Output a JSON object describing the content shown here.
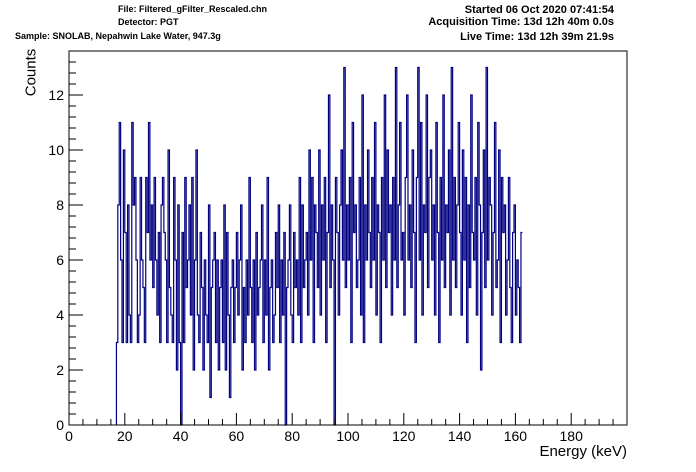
{
  "header": {
    "file": "File: Filtered_gFilter_Rescaled.chn",
    "detector": "Detector: PGT",
    "sample": "Sample: SNOLAB, Nepahwin Lake Water, 947.3g",
    "started": "Started 06 Oct 2020 07:41:54",
    "acquisition": "Acquisition Time: 13d 12h 40m 0.0s",
    "live": "Live Time: 13d 12h 39m 21.9s"
  },
  "colors": {
    "line": "#000080",
    "axis": "#000000"
  },
  "chart_data": {
    "type": "histogram",
    "xlabel": "Energy (keV)",
    "ylabel": "Counts",
    "xlim": [
      0,
      200
    ],
    "ylim": [
      0,
      13.6
    ],
    "xticks": [
      0,
      20,
      40,
      60,
      80,
      100,
      120,
      140,
      160,
      180
    ],
    "yticks": [
      0,
      2,
      4,
      6,
      8,
      10,
      12
    ],
    "bin_width": 0.5,
    "x_start": 17,
    "counts": [
      3,
      8,
      11,
      6,
      3,
      10,
      7,
      3,
      8,
      4,
      3,
      11,
      8,
      9,
      6,
      3,
      4,
      9,
      6,
      5,
      3,
      9,
      7,
      11,
      6,
      8,
      5,
      9,
      6,
      4,
      7,
      3,
      8,
      9,
      7,
      6,
      3,
      10,
      5,
      4,
      3,
      9,
      6,
      2,
      8,
      3,
      0,
      7,
      3,
      9,
      5,
      6,
      8,
      4,
      9,
      2,
      6,
      10,
      4,
      3,
      7,
      5,
      2,
      6,
      4,
      3,
      8,
      1,
      5,
      6,
      7,
      3,
      6,
      2,
      5,
      6,
      3,
      8,
      2,
      7,
      4,
      1,
      5,
      6,
      3,
      5,
      7,
      4,
      6,
      8,
      2,
      5,
      3,
      6,
      4,
      9,
      5,
      3,
      6,
      2,
      7,
      4,
      5,
      6,
      8,
      3,
      6,
      4,
      9,
      2,
      5,
      6,
      3,
      4,
      7,
      5,
      8,
      3,
      6,
      4,
      7,
      0,
      5,
      6,
      8,
      4,
      3,
      7,
      5,
      6,
      4,
      9,
      3,
      8,
      5,
      6,
      7,
      4,
      10,
      6,
      9,
      3,
      8,
      7,
      5,
      10,
      4,
      8,
      6,
      9,
      3,
      7,
      12,
      5,
      8,
      6,
      0,
      9,
      7,
      4,
      8,
      10,
      6,
      13,
      5,
      8,
      6,
      9,
      3,
      11,
      7,
      8,
      5,
      6,
      9,
      4,
      12,
      3,
      8,
      6,
      10,
      7,
      5,
      9,
      6,
      11,
      4,
      8,
      7,
      3,
      9,
      6,
      12,
      5,
      10,
      7,
      8,
      4,
      9,
      6,
      13,
      5,
      8,
      11,
      6,
      7,
      4,
      9,
      12,
      6,
      8,
      5,
      10,
      7,
      3,
      9,
      13,
      6,
      11,
      4,
      8,
      7,
      12,
      5,
      9,
      10,
      6,
      8,
      4,
      11,
      7,
      3,
      9,
      6,
      12,
      5,
      8,
      7,
      10,
      4,
      13,
      6,
      9,
      5,
      8,
      11,
      7,
      4,
      10,
      6,
      9,
      3,
      8,
      5,
      12,
      7,
      6,
      9,
      4,
      11,
      8,
      2,
      7,
      10,
      5,
      13,
      6,
      9,
      8,
      4,
      7,
      11,
      5,
      6,
      10,
      3,
      9,
      7,
      8,
      4,
      6,
      9,
      5,
      3,
      7,
      8,
      4,
      6,
      5,
      3,
      7
    ],
    "grid": false,
    "legend": "none"
  }
}
